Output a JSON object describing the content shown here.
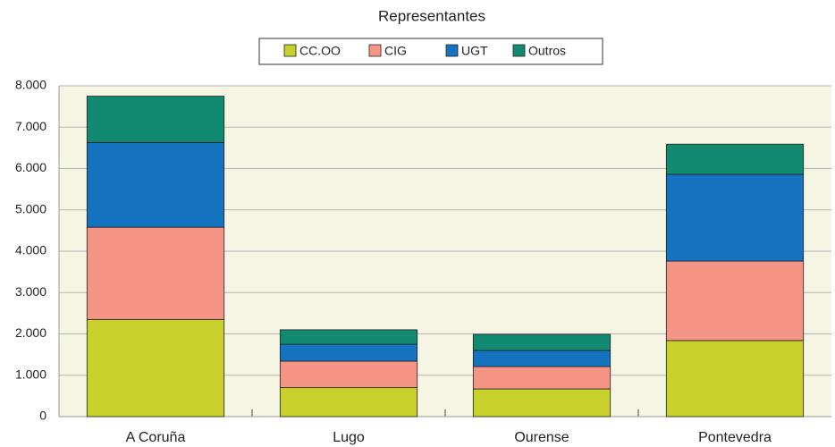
{
  "chart_data": {
    "type": "stacked_bar",
    "title": "Representantes",
    "categories": [
      "A Coruña",
      "Lugo",
      "Ourense",
      "Pontevedra"
    ],
    "series": [
      {
        "name": "CC.OO",
        "color": "#c8d12c",
        "values": [
          2350,
          700,
          670,
          1840
        ]
      },
      {
        "name": "CIG",
        "color": "#f49585",
        "values": [
          2230,
          640,
          540,
          1920
        ]
      },
      {
        "name": "UGT",
        "color": "#1472be",
        "values": [
          2050,
          410,
          390,
          2100
        ]
      },
      {
        "name": "Outros",
        "color": "#128a72",
        "values": [
          1120,
          350,
          390,
          730
        ]
      }
    ],
    "ylim": [
      0,
      8000
    ],
    "yticks": [
      0,
      {
        "value": 1000,
        "label": "1.000"
      },
      {
        "value": 2000,
        "label": "2.000"
      },
      {
        "value": 3000,
        "label": "3.000"
      },
      {
        "value": 4000,
        "label": "4.000"
      },
      {
        "value": 5000,
        "label": "5.000"
      },
      {
        "value": 6000,
        "label": "6.000"
      },
      {
        "value": 7000,
        "label": "7.000"
      },
      {
        "value": 8000,
        "label": "8.000"
      }
    ],
    "grid": true
  }
}
